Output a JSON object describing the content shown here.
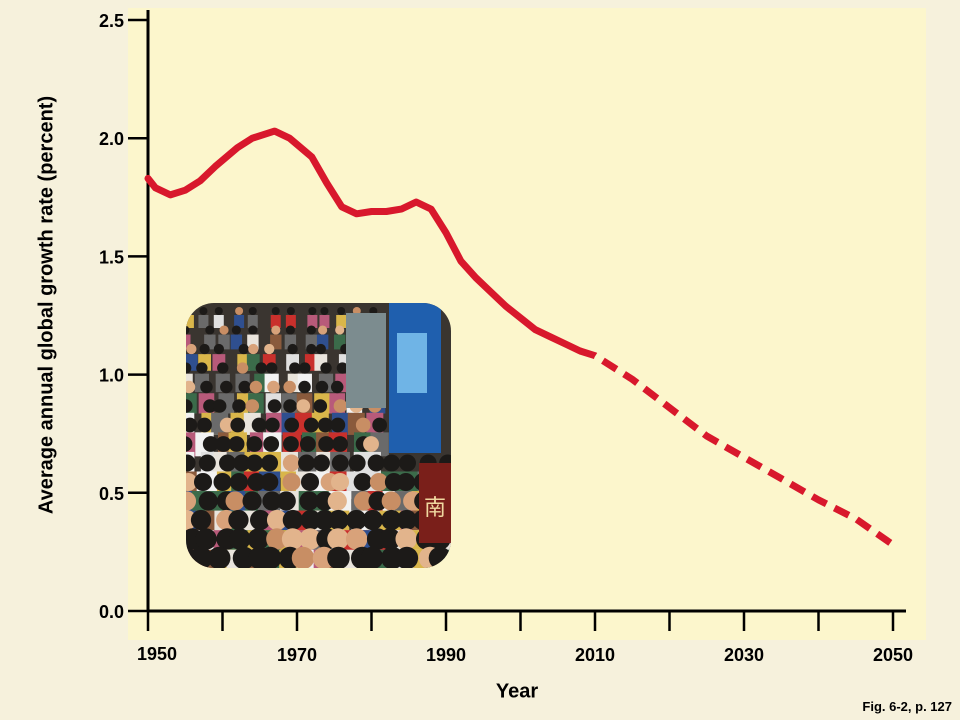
{
  "chart_data": {
    "type": "line",
    "xlabel": "Year",
    "ylabel": "Average annual global growth rate (percent)",
    "xlim": [
      1950,
      2050
    ],
    "ylim": [
      0,
      2.5
    ],
    "x_ticks": [
      1950,
      1970,
      1990,
      2010,
      2030,
      2050
    ],
    "y_ticks": [
      "0.0",
      "0.5",
      "1.0",
      "1.5",
      "2.0",
      "2.5"
    ],
    "grid": false,
    "series": [
      {
        "style": "solid",
        "x": [
          1950,
          1951,
          1953,
          1955,
          1957,
          1959,
          1962,
          1964,
          1967,
          1969,
          1972,
          1974,
          1976,
          1978,
          1980,
          1982,
          1984,
          1986,
          1988,
          1990,
          1992,
          1994,
          1996,
          1998,
          2000,
          2002,
          2004,
          2006,
          2008
        ],
        "y": [
          1.83,
          1.79,
          1.76,
          1.78,
          1.82,
          1.88,
          1.96,
          2.0,
          2.03,
          2.0,
          1.92,
          1.81,
          1.71,
          1.68,
          1.69,
          1.69,
          1.7,
          1.73,
          1.7,
          1.6,
          1.48,
          1.41,
          1.35,
          1.29,
          1.24,
          1.19,
          1.16,
          1.13,
          1.1
        ]
      },
      {
        "style": "dashed",
        "x": [
          2008,
          2010,
          2015,
          2020,
          2025,
          2030,
          2035,
          2040,
          2045,
          2050
        ],
        "y": [
          1.1,
          1.08,
          0.98,
          0.86,
          0.74,
          0.65,
          0.56,
          0.47,
          0.39,
          0.28
        ]
      }
    ],
    "colors": {
      "line": "#d8182c",
      "plot_bg": "#fcf6cc",
      "page_bg": "#f6f1dc",
      "axis": "#000000"
    }
  },
  "photo": {
    "subject": "dense crowd of people in a city street",
    "sign_text": "南"
  },
  "caption": "Fig. 6-2, p. 127"
}
